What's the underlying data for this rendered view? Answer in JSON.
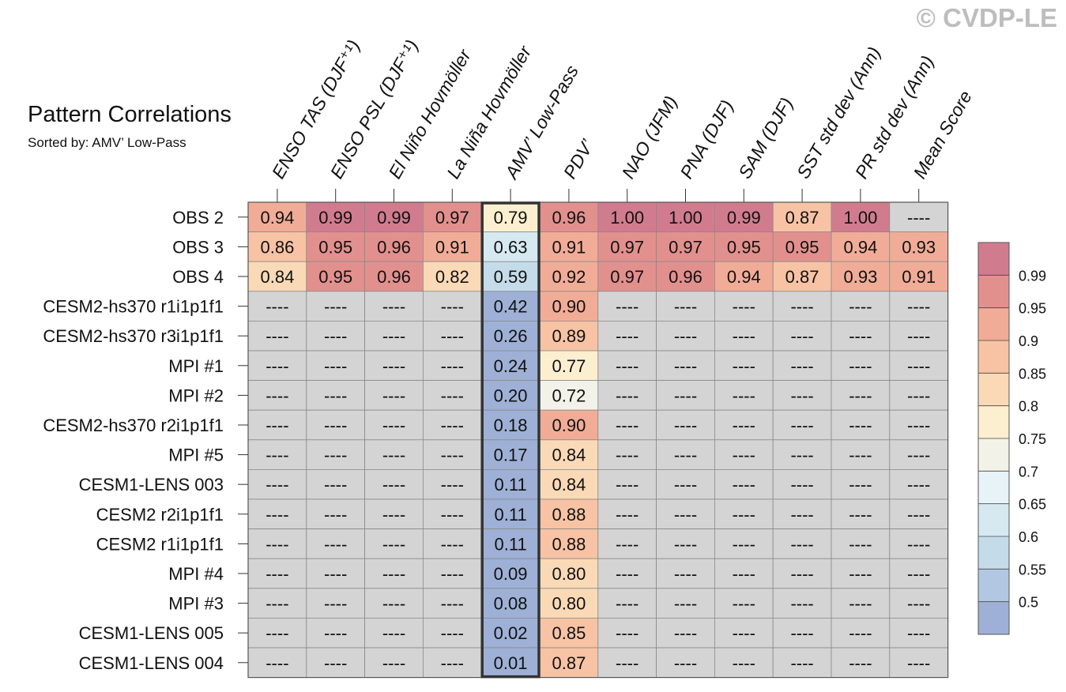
{
  "watermark": "© CVDP-LE",
  "chart_data": {
    "type": "heatmap",
    "title": "Pattern Correlations",
    "subtitle": "Sorted by: AMV’ Low-Pass",
    "columns": [
      "ENSO TAS (DJF⁺¹)",
      "ENSO PSL (DJF⁺¹)",
      "El Niño Hovmöller",
      "La Niña Hovmöller",
      "AMV’ Low-Pass",
      "PDV’",
      "NAO (JFM)",
      "PNA (DJF)",
      "SAM (DJF)",
      "SST std dev (Ann)",
      "PR std dev (Ann)",
      "Mean Score"
    ],
    "highlight_column": 4,
    "missing_label": "----",
    "rows": [
      {
        "label": "OBS 2",
        "values": [
          0.94,
          0.99,
          0.99,
          0.97,
          0.79,
          0.96,
          1.0,
          1.0,
          0.99,
          0.87,
          1.0,
          null
        ]
      },
      {
        "label": "OBS 3",
        "values": [
          0.86,
          0.95,
          0.96,
          0.91,
          0.63,
          0.91,
          0.97,
          0.97,
          0.95,
          0.95,
          0.94,
          0.93
        ]
      },
      {
        "label": "OBS 4",
        "values": [
          0.84,
          0.95,
          0.96,
          0.82,
          0.59,
          0.92,
          0.97,
          0.96,
          0.94,
          0.87,
          0.93,
          0.91
        ]
      },
      {
        "label": "CESM2-hs370 r1i1p1f1",
        "values": [
          null,
          null,
          null,
          null,
          0.42,
          0.9,
          null,
          null,
          null,
          null,
          null,
          null
        ]
      },
      {
        "label": "CESM2-hs370 r3i1p1f1",
        "values": [
          null,
          null,
          null,
          null,
          0.26,
          0.89,
          null,
          null,
          null,
          null,
          null,
          null
        ]
      },
      {
        "label": "MPI #1",
        "values": [
          null,
          null,
          null,
          null,
          0.24,
          0.77,
          null,
          null,
          null,
          null,
          null,
          null
        ]
      },
      {
        "label": "MPI #2",
        "values": [
          null,
          null,
          null,
          null,
          0.2,
          0.72,
          null,
          null,
          null,
          null,
          null,
          null
        ]
      },
      {
        "label": "CESM2-hs370 r2i1p1f1",
        "values": [
          null,
          null,
          null,
          null,
          0.18,
          0.9,
          null,
          null,
          null,
          null,
          null,
          null
        ]
      },
      {
        "label": "MPI #5",
        "values": [
          null,
          null,
          null,
          null,
          0.17,
          0.84,
          null,
          null,
          null,
          null,
          null,
          null
        ]
      },
      {
        "label": "CESM1-LENS 003",
        "values": [
          null,
          null,
          null,
          null,
          0.11,
          0.84,
          null,
          null,
          null,
          null,
          null,
          null
        ]
      },
      {
        "label": "CESM2 r2i1p1f1",
        "values": [
          null,
          null,
          null,
          null,
          0.11,
          0.88,
          null,
          null,
          null,
          null,
          null,
          null
        ]
      },
      {
        "label": "CESM2 r1i1p1f1",
        "values": [
          null,
          null,
          null,
          null,
          0.11,
          0.88,
          null,
          null,
          null,
          null,
          null,
          null
        ]
      },
      {
        "label": "MPI #4",
        "values": [
          null,
          null,
          null,
          null,
          0.09,
          0.8,
          null,
          null,
          null,
          null,
          null,
          null
        ]
      },
      {
        "label": "MPI #3",
        "values": [
          null,
          null,
          null,
          null,
          0.08,
          0.8,
          null,
          null,
          null,
          null,
          null,
          null
        ]
      },
      {
        "label": "CESM1-LENS 005",
        "values": [
          null,
          null,
          null,
          null,
          0.02,
          0.85,
          null,
          null,
          null,
          null,
          null,
          null
        ]
      },
      {
        "label": "CESM1-LENS 004",
        "values": [
          null,
          null,
          null,
          null,
          0.01,
          0.87,
          null,
          null,
          null,
          null,
          null,
          null
        ]
      }
    ],
    "colorbar": {
      "boundaries": [
        0.5,
        0.55,
        0.6,
        0.65,
        0.7,
        0.75,
        0.8,
        0.85,
        0.9,
        0.95,
        0.99
      ],
      "tick_labels": [
        "0.5",
        "0.55",
        "0.6",
        "0.65",
        "0.7",
        "0.75",
        "0.8",
        "0.85",
        "0.9",
        "0.95",
        "0.99"
      ],
      "colors": [
        "#9eb0d6",
        "#b2c8e2",
        "#c4dcea",
        "#d6e9f1",
        "#e8f3f7",
        "#f2f2e8",
        "#fcefd0",
        "#fad9b6",
        "#f7c3a4",
        "#f1ac97",
        "#e2908e",
        "#d17c8e"
      ],
      "missing_color": "#d4d4d4"
    }
  }
}
